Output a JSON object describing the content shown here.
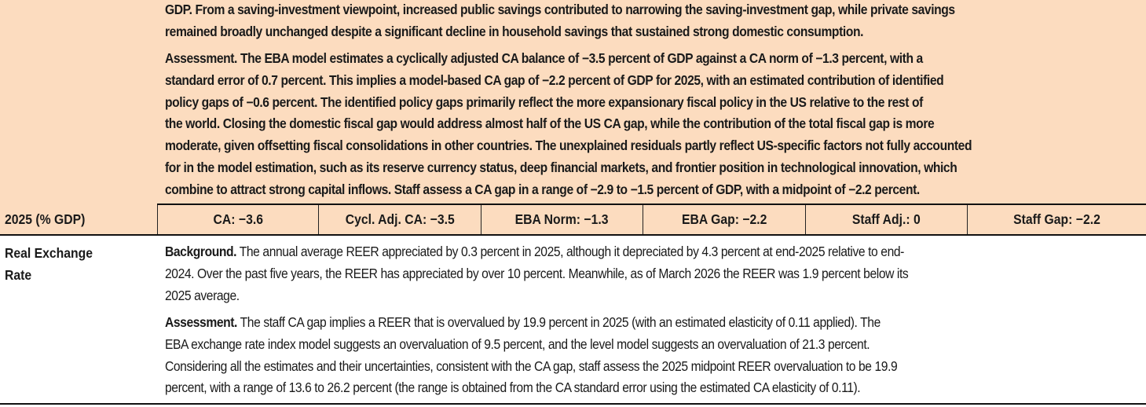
{
  "ca_section": {
    "intro_lines": [
      "GDP. From a saving-investment viewpoint, increased public savings contributed to narrowing the saving-investment gap, while private savings",
      "remained broadly unchanged despite a significant decline in household savings that sustained strong domestic consumption."
    ],
    "assessment_lead": "Assessment.",
    "assessment_lines": [
      " The EBA model estimates a cyclically adjusted CA balance of −3.5 percent of GDP against a CA norm of −1.3 percent, with a",
      "standard error of 0.7 percent. This implies a model-based CA gap of −2.2 percent of GDP for 2025, with an estimated contribution of identified",
      "policy gaps of −0.6 percent. The identified policy gaps primarily reflect the more expansionary fiscal policy in the US relative to the rest of",
      "the world. Closing the domestic fiscal gap would address almost half of the US CA gap, while the contribution of the total fiscal gap is more",
      "moderate, given offsetting fiscal consolidations in other countries. The unexplained residuals partly reflect US-specific factors not fully accounted",
      "for in the model estimation, such as its reserve currency status, deep financial markets, and frontier position in technological innovation, which",
      "combine to attract strong capital inflows. Staff assess a CA gap in a range of −2.9 to −1.5 percent of GDP, with a midpoint of −2.2 percent."
    ]
  },
  "gdp_row": {
    "label": "2025 (% GDP)",
    "cells": [
      "CA: −3.6",
      "Cycl. Adj. CA: −3.5",
      "EBA Norm: −1.3",
      "EBA Gap: −2.2",
      "Staff Adj.: 0",
      "Staff Gap: −2.2"
    ]
  },
  "rer_section": {
    "label_lines": [
      "Real Exchange",
      "Rate"
    ],
    "background_lead": "Background.",
    "background_lines": [
      " The annual average REER appreciated by 0.3 percent in 2025, although it depreciated by 4.3 percent at end-2025 relative to end-",
      "2024. Over the past five years, the REER has appreciated by over 10 percent. Meanwhile, as of March 2026 the REER was 1.9 percent below its",
      "2025 average."
    ],
    "assessment_lead": "Assessment.",
    "assessment_lines": [
      " The staff CA gap implies a REER that is overvalued by 19.9 percent in 2025 (with an estimated elasticity of 0.11 applied). The",
      "EBA exchange rate index model suggests an overvaluation of 9.5 percent, and the level model suggests an overvaluation of 21.3 percent.",
      "Considering all the estimates and their uncertainties, consistent with the CA gap, staff assess the 2025 midpoint REER overvaluation to be 19.9",
      "percent, with a range of 13.6 to 26.2 percent (the range is obtained from the CA standard error using the estimated CA elasticity of 0.11)."
    ]
  },
  "colors": {
    "highlight_bg": "#fcdcbf",
    "rule": "#111111"
  }
}
